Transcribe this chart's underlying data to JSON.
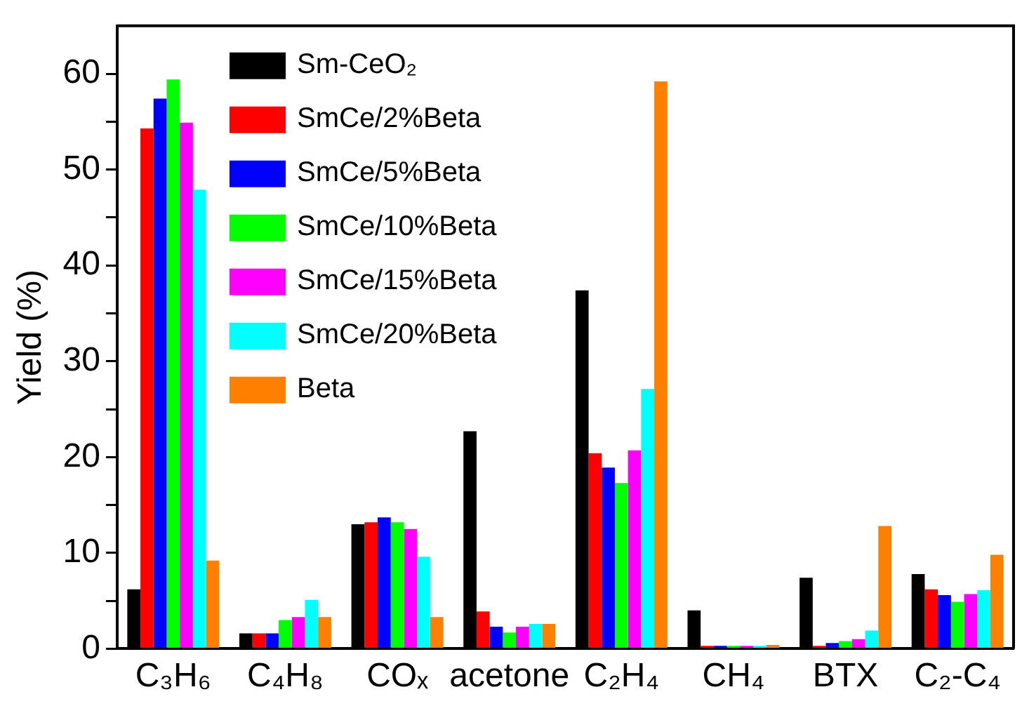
{
  "chart_data": {
    "type": "bar",
    "ylabel": "Yield (%)",
    "categories": [
      "C₃H₆",
      "C₄H₈",
      "COₓ",
      "acetone",
      "C₂H₄",
      "CH₄",
      "BTX",
      "C₂-C₄"
    ],
    "series": [
      {
        "name": "Sm-CeO₂",
        "color": "#000000",
        "values": [
          6.2,
          1.6,
          13.0,
          22.7,
          37.4,
          4.0,
          7.4,
          7.8
        ]
      },
      {
        "name": "SmCe/2%Beta",
        "color": "#ff0000",
        "values": [
          54.3,
          1.6,
          13.2,
          3.9,
          20.4,
          0.3,
          0.3,
          6.2
        ]
      },
      {
        "name": "SmCe/5%Beta",
        "color": "#0000ff",
        "values": [
          57.4,
          1.6,
          13.7,
          2.3,
          18.9,
          0.3,
          0.6,
          5.6
        ]
      },
      {
        "name": "SmCe/10%Beta",
        "color": "#00ff00",
        "values": [
          59.4,
          3.0,
          13.2,
          1.7,
          17.3,
          0.3,
          0.8,
          4.9
        ]
      },
      {
        "name": "SmCe/15%Beta",
        "color": "#ff00ff",
        "values": [
          54.9,
          3.3,
          12.5,
          2.3,
          20.7,
          0.3,
          1.0,
          5.7
        ]
      },
      {
        "name": "SmCe/20%Beta",
        "color": "#00ffff",
        "values": [
          47.9,
          5.1,
          9.6,
          2.6,
          27.1,
          0.3,
          1.9,
          6.1
        ]
      },
      {
        "name": "Beta",
        "color": "#ff8000",
        "values": [
          9.2,
          3.3,
          3.3,
          2.6,
          59.2,
          0.4,
          12.8,
          9.8
        ]
      }
    ],
    "ylim": [
      0,
      65
    ],
    "yticks": [
      0,
      {
        "value": 5,
        "label": null
      },
      10,
      {
        "value": 15,
        "label": null
      },
      20,
      {
        "value": 25,
        "label": null
      },
      30,
      {
        "value": 35,
        "label": null
      },
      40,
      {
        "value": 45,
        "label": null
      },
      50,
      {
        "value": 55,
        "label": null
      },
      60
    ],
    "grid": false,
    "legend": "top left"
  }
}
